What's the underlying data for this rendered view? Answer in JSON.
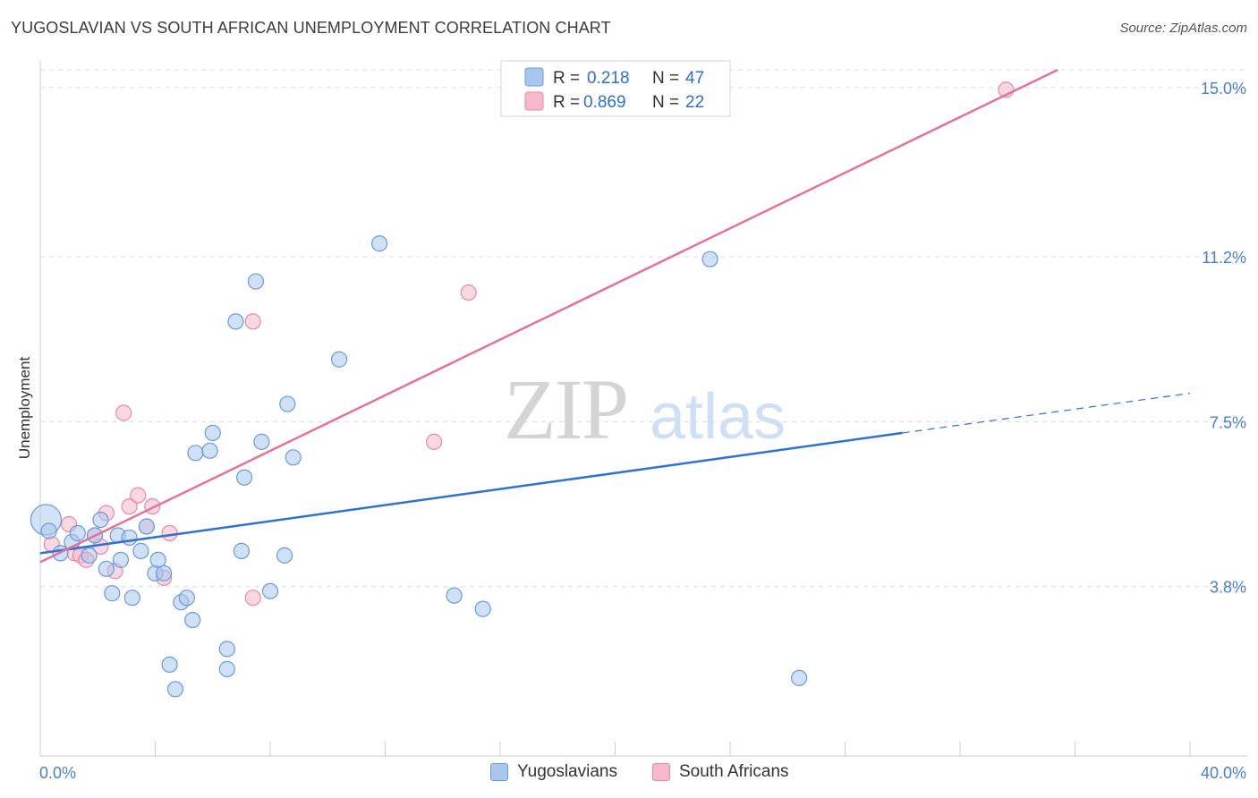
{
  "title": "YUGOSLAVIAN VS SOUTH AFRICAN UNEMPLOYMENT CORRELATION CHART",
  "source": "Source: ZipAtlas.com",
  "watermark": {
    "zip": "ZIP",
    "atlas": "atlas"
  },
  "colors": {
    "blue_fill": "#a9c6ef",
    "blue_stroke": "#6b9ad9",
    "blue_line": "#2f72d0",
    "pink_fill": "#f6b8ca",
    "pink_stroke": "#e58aa6",
    "pink_line": "#e4739a",
    "grid": "#dddddd",
    "tick_text": "#4a7fc8"
  },
  "legend": {
    "rows": [
      {
        "r_label": "R =",
        "r_value": "0.218",
        "n_label": "N =",
        "n_value": "47"
      },
      {
        "r_label": "R =",
        "r_value": "0.869",
        "n_label": "N =",
        "n_value": "22"
      }
    ]
  },
  "bottom_legend": {
    "series1": "Yugoslavians",
    "series2": "South Africans"
  },
  "chart_data": {
    "type": "scatter",
    "title": "YUGOSLAVIAN VS SOUTH AFRICAN UNEMPLOYMENT CORRELATION CHART",
    "xlabel": "",
    "ylabel": "Unemployment",
    "xlim": [
      0,
      40
    ],
    "ylim": [
      0,
      15.4
    ],
    "x_tick_labels": [
      "0.0%",
      "40.0%"
    ],
    "y_ticks": [
      3.8,
      7.5,
      11.2,
      15.0
    ],
    "y_tick_labels": [
      "3.8%",
      "7.5%",
      "11.2%",
      "15.0%"
    ],
    "series": [
      {
        "name": "Yugoslavians",
        "r": 0.218,
        "n": 47,
        "trend": {
          "x0": 0,
          "y0": 4.55,
          "x1": 30,
          "y1": 7.25,
          "dash_to_x": 40,
          "dash_to_y": 8.14
        },
        "points": [
          {
            "x": 0.2,
            "y": 5.3,
            "big": true
          },
          {
            "x": 0.3,
            "y": 5.05
          },
          {
            "x": 0.7,
            "y": 4.55
          },
          {
            "x": 1.1,
            "y": 4.8
          },
          {
            "x": 1.3,
            "y": 5.0
          },
          {
            "x": 1.7,
            "y": 4.5
          },
          {
            "x": 1.9,
            "y": 4.95
          },
          {
            "x": 2.1,
            "y": 5.3
          },
          {
            "x": 2.3,
            "y": 4.2
          },
          {
            "x": 2.5,
            "y": 3.65
          },
          {
            "x": 2.7,
            "y": 4.95
          },
          {
            "x": 2.8,
            "y": 4.4
          },
          {
            "x": 3.1,
            "y": 4.9
          },
          {
            "x": 3.2,
            "y": 3.55
          },
          {
            "x": 3.5,
            "y": 4.6
          },
          {
            "x": 3.7,
            "y": 5.15
          },
          {
            "x": 4.0,
            "y": 4.1
          },
          {
            "x": 4.1,
            "y": 4.4
          },
          {
            "x": 4.3,
            "y": 4.1
          },
          {
            "x": 4.5,
            "y": 2.05
          },
          {
            "x": 4.7,
            "y": 1.5
          },
          {
            "x": 4.9,
            "y": 3.45
          },
          {
            "x": 5.1,
            "y": 3.55
          },
          {
            "x": 5.3,
            "y": 3.05
          },
          {
            "x": 5.4,
            "y": 6.8
          },
          {
            "x": 5.9,
            "y": 6.85
          },
          {
            "x": 6.0,
            "y": 7.25
          },
          {
            "x": 6.5,
            "y": 2.4
          },
          {
            "x": 6.5,
            "y": 1.95
          },
          {
            "x": 6.8,
            "y": 9.75
          },
          {
            "x": 7.0,
            "y": 4.6
          },
          {
            "x": 7.1,
            "y": 6.25
          },
          {
            "x": 7.5,
            "y": 10.65
          },
          {
            "x": 7.7,
            "y": 7.05
          },
          {
            "x": 8.0,
            "y": 3.7
          },
          {
            "x": 8.5,
            "y": 4.5
          },
          {
            "x": 8.6,
            "y": 7.9
          },
          {
            "x": 8.8,
            "y": 6.7
          },
          {
            "x": 10.4,
            "y": 8.9
          },
          {
            "x": 11.8,
            "y": 11.5
          },
          {
            "x": 14.4,
            "y": 3.6
          },
          {
            "x": 15.4,
            "y": 3.3
          },
          {
            "x": 23.3,
            "y": 11.15
          },
          {
            "x": 26.4,
            "y": 1.75
          }
        ]
      },
      {
        "name": "South Africans",
        "r": 0.869,
        "n": 22,
        "trend": {
          "x0": 0,
          "y0": 4.35,
          "x1": 35.4,
          "y1": 15.4
        },
        "points": [
          {
            "x": 0.4,
            "y": 4.75
          },
          {
            "x": 1.0,
            "y": 5.2
          },
          {
            "x": 1.2,
            "y": 4.55
          },
          {
            "x": 1.4,
            "y": 4.5
          },
          {
            "x": 1.6,
            "y": 4.4
          },
          {
            "x": 1.9,
            "y": 4.95
          },
          {
            "x": 2.1,
            "y": 4.7
          },
          {
            "x": 2.3,
            "y": 5.45
          },
          {
            "x": 2.6,
            "y": 4.15
          },
          {
            "x": 2.9,
            "y": 7.7
          },
          {
            "x": 3.1,
            "y": 5.6
          },
          {
            "x": 3.4,
            "y": 5.85
          },
          {
            "x": 3.7,
            "y": 5.15
          },
          {
            "x": 3.9,
            "y": 5.6
          },
          {
            "x": 4.3,
            "y": 4.0
          },
          {
            "x": 4.5,
            "y": 5.0
          },
          {
            "x": 7.4,
            "y": 3.55
          },
          {
            "x": 7.4,
            "y": 9.75
          },
          {
            "x": 13.7,
            "y": 7.05
          },
          {
            "x": 14.9,
            "y": 10.4
          },
          {
            "x": 33.6,
            "y": 14.95
          }
        ]
      }
    ]
  }
}
